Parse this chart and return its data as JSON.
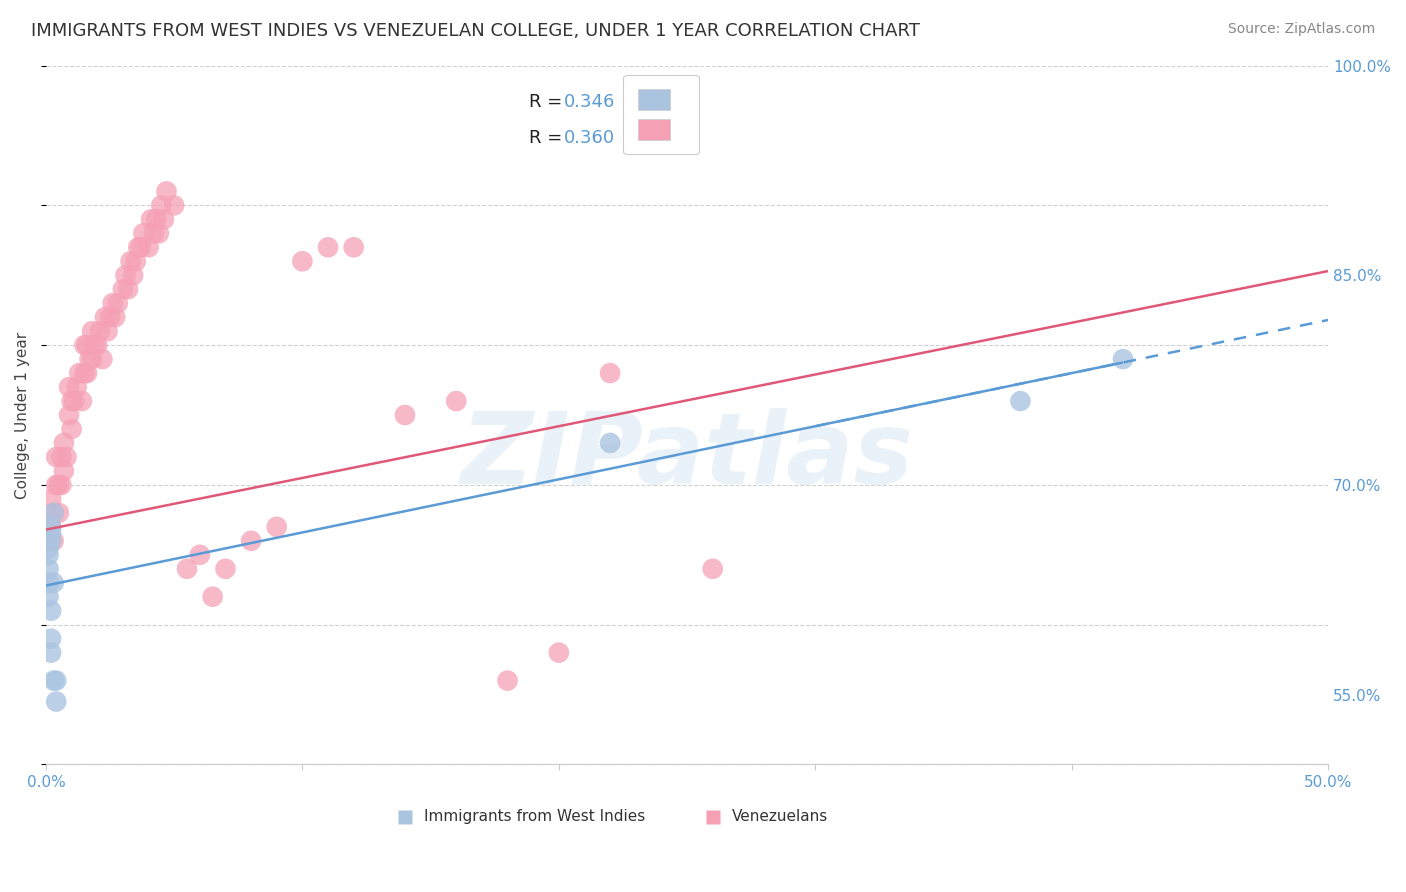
{
  "title": "IMMIGRANTS FROM WEST INDIES VS VENEZUELAN COLLEGE, UNDER 1 YEAR CORRELATION CHART",
  "source": "Source: ZipAtlas.com",
  "ylabel": "College, Under 1 year",
  "xlim": [
    0.0,
    0.5
  ],
  "ylim": [
    0.5,
    1.0
  ],
  "grid_color": "#d0d0d0",
  "background_color": "#ffffff",
  "watermark": "ZIPatlas",
  "watermark_color": "#b8d4e8",
  "west_indies_x": [
    0.001,
    0.001,
    0.001,
    0.001,
    0.001,
    0.002,
    0.002,
    0.002,
    0.002,
    0.002,
    0.002,
    0.003,
    0.003,
    0.003,
    0.004,
    0.004,
    0.22,
    0.38,
    0.42
  ],
  "west_indies_y": [
    0.62,
    0.63,
    0.64,
    0.65,
    0.655,
    0.58,
    0.59,
    0.61,
    0.66,
    0.665,
    0.67,
    0.56,
    0.63,
    0.68,
    0.545,
    0.56,
    0.73,
    0.76,
    0.79
  ],
  "west_indies_color": "#aac4e0",
  "west_indies_R": 0.346,
  "west_indies_N": 19,
  "venezuelans_x": [
    0.002,
    0.002,
    0.003,
    0.003,
    0.004,
    0.004,
    0.005,
    0.005,
    0.006,
    0.006,
    0.007,
    0.007,
    0.008,
    0.009,
    0.009,
    0.01,
    0.01,
    0.011,
    0.012,
    0.013,
    0.014,
    0.015,
    0.015,
    0.016,
    0.016,
    0.017,
    0.018,
    0.018,
    0.019,
    0.02,
    0.021,
    0.022,
    0.023,
    0.024,
    0.025,
    0.026,
    0.027,
    0.028,
    0.03,
    0.031,
    0.032,
    0.033,
    0.034,
    0.035,
    0.036,
    0.037,
    0.038,
    0.04,
    0.041,
    0.042,
    0.043,
    0.044,
    0.045,
    0.046,
    0.047,
    0.05,
    0.055,
    0.06,
    0.065,
    0.07,
    0.08,
    0.09,
    0.1,
    0.11,
    0.12,
    0.14,
    0.16,
    0.18,
    0.2,
    0.22,
    0.26
  ],
  "venezuelans_y": [
    0.67,
    0.69,
    0.66,
    0.68,
    0.7,
    0.72,
    0.68,
    0.7,
    0.7,
    0.72,
    0.71,
    0.73,
    0.72,
    0.75,
    0.77,
    0.74,
    0.76,
    0.76,
    0.77,
    0.78,
    0.76,
    0.78,
    0.8,
    0.78,
    0.8,
    0.79,
    0.79,
    0.81,
    0.8,
    0.8,
    0.81,
    0.79,
    0.82,
    0.81,
    0.82,
    0.83,
    0.82,
    0.83,
    0.84,
    0.85,
    0.84,
    0.86,
    0.85,
    0.86,
    0.87,
    0.87,
    0.88,
    0.87,
    0.89,
    0.88,
    0.89,
    0.88,
    0.9,
    0.89,
    0.91,
    0.9,
    0.64,
    0.65,
    0.62,
    0.64,
    0.66,
    0.67,
    0.86,
    0.87,
    0.87,
    0.75,
    0.76,
    0.56,
    0.58,
    0.78,
    0.64
  ],
  "venezuelans_color": "#f5a0b5",
  "venezuelans_R": 0.36,
  "venezuelans_N": 71,
  "line_west_indies_color": "#5b9bd5",
  "line_venezuelans_color": "#e05878",
  "title_fontsize": 13,
  "axis_label_fontsize": 11,
  "tick_fontsize": 11,
  "legend_fontsize": 13,
  "source_fontsize": 10,
  "reg_west_intercept": 0.628,
  "reg_west_slope": 0.38,
  "reg_ven_intercept": 0.668,
  "reg_ven_slope": 0.37
}
